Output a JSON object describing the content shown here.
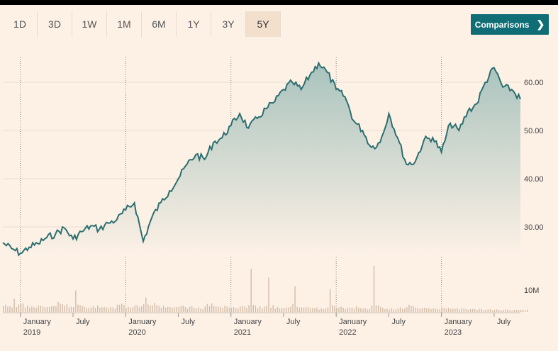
{
  "range_tabs": [
    {
      "label": "1D"
    },
    {
      "label": "3D"
    },
    {
      "label": "1W"
    },
    {
      "label": "1M"
    },
    {
      "label": "6M"
    },
    {
      "label": "1Y"
    },
    {
      "label": "3Y"
    },
    {
      "label": "5Y"
    }
  ],
  "active_tab": "5Y",
  "comparisons_label": "Comparisons",
  "colors": {
    "line": "#2b6f70",
    "fill_top": "#a9c3bd",
    "volume": "#d2bca8",
    "accent": "#0f6e75"
  },
  "chart_data": {
    "type": "area",
    "x_start": "2018-11",
    "x_end": "2023-10",
    "y_ticks": [
      "60.00",
      "50.00",
      "40.00",
      "30.00"
    ],
    "ylim": [
      25,
      65
    ],
    "volume_tick": "10M",
    "x_labels": [
      {
        "line1": "January",
        "line2": "2019"
      },
      {
        "line1": "July",
        "line2": ""
      },
      {
        "line1": "January",
        "line2": "2020"
      },
      {
        "line1": "July",
        "line2": ""
      },
      {
        "line1": "January",
        "line2": "2021"
      },
      {
        "line1": "July",
        "line2": ""
      },
      {
        "line1": "January",
        "line2": "2022"
      },
      {
        "line1": "July",
        "line2": ""
      },
      {
        "line1": "January",
        "line2": "2023"
      },
      {
        "line1": "July",
        "line2": ""
      }
    ],
    "price": [
      [
        "2018-11",
        26.7
      ],
      [
        "2018-12",
        25.5
      ],
      [
        "2019-01",
        24.5
      ],
      [
        "2019-02",
        25.8
      ],
      [
        "2019-03",
        26.5
      ],
      [
        "2019-04",
        27.8
      ],
      [
        "2019-05",
        28.5
      ],
      [
        "2019-06",
        29.8
      ],
      [
        "2019-07",
        27.5
      ],
      [
        "2019-08",
        29.0
      ],
      [
        "2019-09",
        30.2
      ],
      [
        "2019-10",
        29.5
      ],
      [
        "2019-11",
        30.8
      ],
      [
        "2019-12",
        31.5
      ],
      [
        "2020-01",
        33.5
      ],
      [
        "2020-02",
        35.0
      ],
      [
        "2020-03",
        27.0
      ],
      [
        "2020-04",
        32.0
      ],
      [
        "2020-05",
        35.0
      ],
      [
        "2020-06",
        37.5
      ],
      [
        "2020-07",
        40.0
      ],
      [
        "2020-08",
        43.0
      ],
      [
        "2020-09",
        45.0
      ],
      [
        "2020-10",
        44.0
      ],
      [
        "2020-11",
        47.5
      ],
      [
        "2020-12",
        48.5
      ],
      [
        "2021-01",
        51.0
      ],
      [
        "2021-02",
        53.5
      ],
      [
        "2021-03",
        50.5
      ],
      [
        "2021-04",
        52.5
      ],
      [
        "2021-05",
        54.5
      ],
      [
        "2021-06",
        56.0
      ],
      [
        "2021-07",
        58.5
      ],
      [
        "2021-08",
        60.0
      ],
      [
        "2021-09",
        58.5
      ],
      [
        "2021-10",
        61.5
      ],
      [
        "2021-11",
        64.0
      ],
      [
        "2021-12",
        62.0
      ],
      [
        "2022-01",
        58.5
      ],
      [
        "2022-02",
        57.0
      ],
      [
        "2022-03",
        52.0
      ],
      [
        "2022-04",
        50.0
      ],
      [
        "2022-05",
        46.5
      ],
      [
        "2022-06",
        47.5
      ],
      [
        "2022-07",
        53.5
      ],
      [
        "2022-08",
        48.5
      ],
      [
        "2022-09",
        43.0
      ],
      [
        "2022-10",
        43.5
      ],
      [
        "2022-11",
        48.0
      ],
      [
        "2022-12",
        48.5
      ],
      [
        "2023-01",
        45.5
      ],
      [
        "2023-02",
        51.5
      ],
      [
        "2023-03",
        50.0
      ],
      [
        "2023-04",
        54.0
      ],
      [
        "2023-05",
        55.5
      ],
      [
        "2023-06",
        60.0
      ],
      [
        "2023-07",
        63.0
      ],
      [
        "2023-08",
        59.0
      ],
      [
        "2023-09",
        58.5
      ],
      [
        "2023-10",
        56.5
      ]
    ],
    "volume": [
      [
        "2018-11",
        2.5
      ],
      [
        "2018-12",
        4.5
      ],
      [
        "2019-01",
        3.0
      ],
      [
        "2019-02",
        2.0
      ],
      [
        "2019-03",
        2.2
      ],
      [
        "2019-04",
        1.8
      ],
      [
        "2019-05",
        3.5
      ],
      [
        "2019-06",
        2.6
      ],
      [
        "2019-07",
        7.5
      ],
      [
        "2019-08",
        1.8
      ],
      [
        "2019-09",
        2.0
      ],
      [
        "2019-10",
        1.6
      ],
      [
        "2019-11",
        1.7
      ],
      [
        "2019-12",
        2.5
      ],
      [
        "2020-01",
        1.8
      ],
      [
        "2020-02",
        2.4
      ],
      [
        "2020-03",
        5.0
      ],
      [
        "2020-04",
        3.2
      ],
      [
        "2020-05",
        2.2
      ],
      [
        "2020-06",
        1.5
      ],
      [
        "2020-07",
        2.0
      ],
      [
        "2020-08",
        1.8
      ],
      [
        "2020-09",
        1.6
      ],
      [
        "2020-10",
        2.8
      ],
      [
        "2020-11",
        1.9
      ],
      [
        "2020-12",
        2.2
      ],
      [
        "2021-01",
        1.7
      ],
      [
        "2021-02",
        2.1
      ],
      [
        "2021-03",
        15.0
      ],
      [
        "2021-04",
        2.0
      ],
      [
        "2021-05",
        12.0
      ],
      [
        "2021-06",
        1.8
      ],
      [
        "2021-07",
        1.6
      ],
      [
        "2021-08",
        9.0
      ],
      [
        "2021-09",
        1.5
      ],
      [
        "2021-10",
        1.4
      ],
      [
        "2021-11",
        1.3
      ],
      [
        "2021-12",
        8.0
      ],
      [
        "2022-01",
        1.6
      ],
      [
        "2022-02",
        1.5
      ],
      [
        "2022-03",
        2.0
      ],
      [
        "2022-04",
        1.4
      ],
      [
        "2022-05",
        16.0
      ],
      [
        "2022-06",
        1.5
      ],
      [
        "2022-07",
        1.3
      ],
      [
        "2022-08",
        1.6
      ],
      [
        "2022-09",
        2.5
      ],
      [
        "2022-10",
        1.4
      ],
      [
        "2022-11",
        1.3
      ],
      [
        "2022-12",
        1.2
      ],
      [
        "2023-01",
        1.5
      ],
      [
        "2023-02",
        1.2
      ],
      [
        "2023-03",
        1.3
      ],
      [
        "2023-04",
        1.0
      ],
      [
        "2023-05",
        1.0
      ],
      [
        "2023-06",
        0.9
      ],
      [
        "2023-07",
        0.9
      ],
      [
        "2023-08",
        0.8
      ],
      [
        "2023-09",
        0.8
      ],
      [
        "2023-10",
        0.8
      ]
    ]
  }
}
